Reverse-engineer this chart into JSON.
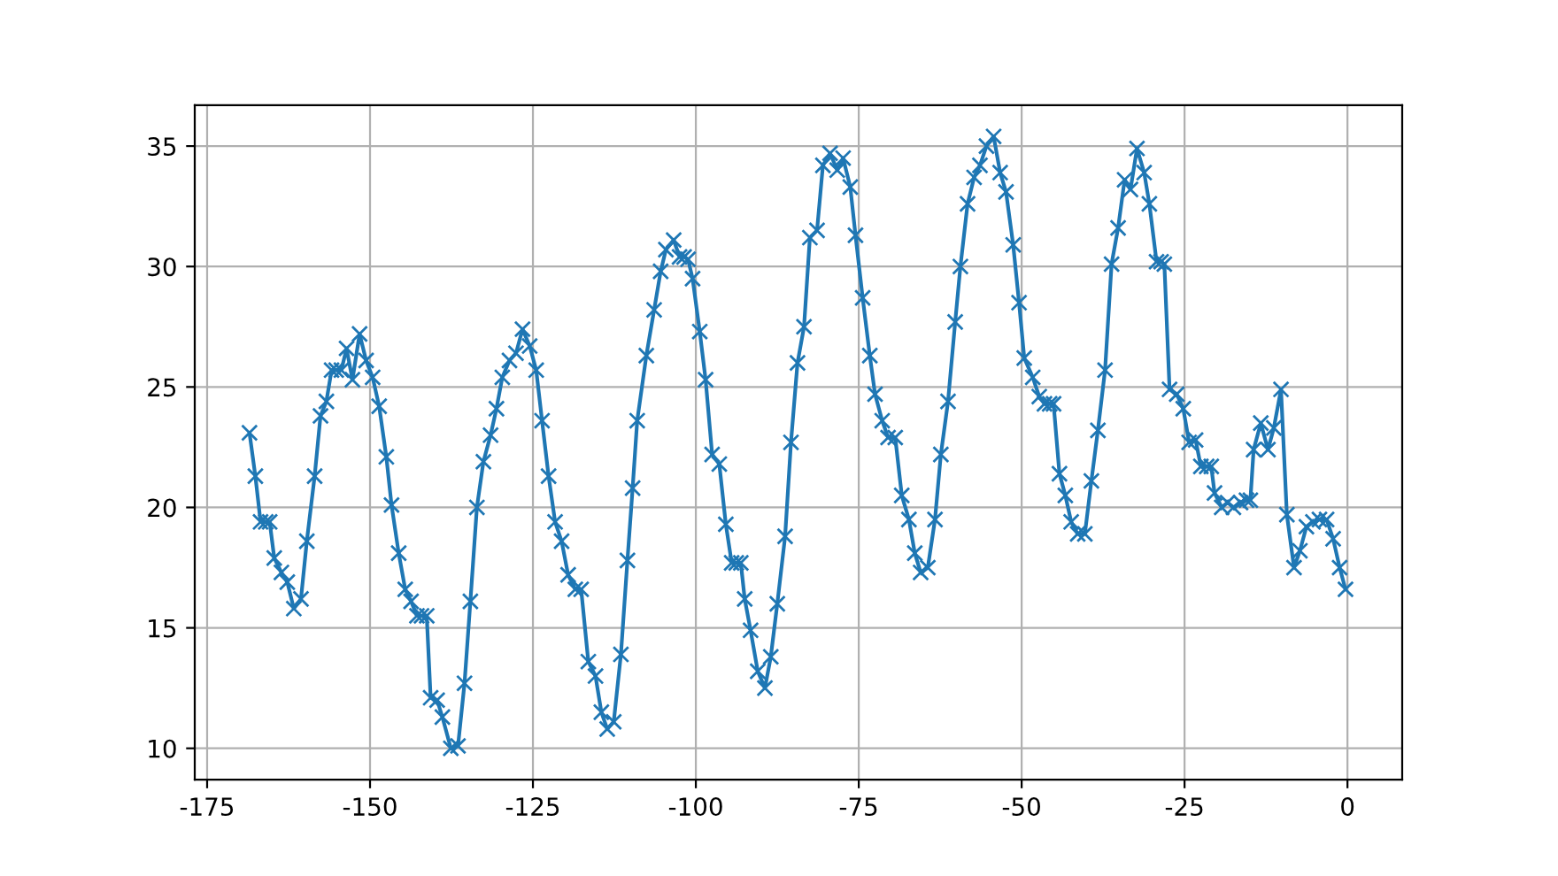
{
  "chart_data": {
    "type": "line",
    "x": [
      -168.5,
      -167.6,
      -166.8,
      -166.0,
      -165.4,
      -164.7,
      -163.6,
      -162.7,
      -161.7,
      -160.6,
      -159.7,
      -158.5,
      -157.6,
      -156.7,
      -155.9,
      -155.2,
      -154.4,
      -153.6,
      -152.7,
      -151.6,
      -150.6,
      -149.6,
      -148.6,
      -147.5,
      -146.7,
      -145.6,
      -144.6,
      -143.7,
      -142.8,
      -142.1,
      -141.3,
      -140.7,
      -139.7,
      -138.9,
      -137.6,
      -136.5,
      -135.5,
      -134.6,
      -133.6,
      -132.6,
      -131.5,
      -130.6,
      -129.7,
      -128.6,
      -127.6,
      -126.6,
      -125.5,
      -124.5,
      -123.6,
      -122.6,
      -121.6,
      -120.6,
      -119.6,
      -118.5,
      -117.6,
      -116.5,
      -115.4,
      -114.5,
      -113.6,
      -112.6,
      -111.5,
      -110.5,
      -109.7,
      -109.0,
      -107.6,
      -106.4,
      -105.4,
      -104.6,
      -103.4,
      -102.5,
      -101.8,
      -101.2,
      -100.5,
      -99.4,
      -98.5,
      -97.5,
      -96.4,
      -95.4,
      -94.5,
      -93.8,
      -93.1,
      -92.5,
      -91.6,
      -90.5,
      -89.4,
      -88.5,
      -87.5,
      -86.3,
      -85.4,
      -84.4,
      -83.4,
      -82.5,
      -81.4,
      -80.5,
      -79.4,
      -78.3,
      -77.4,
      -76.3,
      -75.5,
      -74.4,
      -73.3,
      -72.5,
      -71.4,
      -70.5,
      -69.4,
      -68.4,
      -67.3,
      -66.4,
      -65.5,
      -64.4,
      -63.3,
      -62.4,
      -61.3,
      -60.2,
      -59.4,
      -58.3,
      -57.3,
      -56.4,
      -55.4,
      -54.3,
      -53.3,
      -52.4,
      -51.3,
      -50.4,
      -49.6,
      -48.3,
      -47.3,
      -46.5,
      -45.7,
      -45.1,
      -44.2,
      -43.3,
      -42.4,
      -41.4,
      -40.3,
      -39.3,
      -38.3,
      -37.2,
      -36.2,
      -35.2,
      -34.2,
      -33.3,
      -32.3,
      -31.2,
      -30.4,
      -29.3,
      -28.6,
      -28.1,
      -27.3,
      -26.2,
      -25.2,
      -24.3,
      -23.3,
      -22.5,
      -21.6,
      -20.9,
      -20.4,
      -19.3,
      -18.4,
      -17.5,
      -16.4,
      -15.5,
      -14.9,
      -14.4,
      -13.3,
      -12.2,
      -11.3,
      -10.2,
      -9.3,
      -8.2,
      -7.3,
      -6.3,
      -5.3,
      -4.3,
      -3.2,
      -2.2,
      -1.2,
      -0.3
    ],
    "series": [
      {
        "color": "#1f77b4",
        "values": [
          23.1,
          21.3,
          19.4,
          19.4,
          19.4,
          17.9,
          17.3,
          16.9,
          15.8,
          16.2,
          18.6,
          21.3,
          23.8,
          24.4,
          25.7,
          25.7,
          25.7,
          26.6,
          25.3,
          27.2,
          26.1,
          25.4,
          24.2,
          22.1,
          20.1,
          18.1,
          16.6,
          16.1,
          15.5,
          15.5,
          15.5,
          12.1,
          12.0,
          11.3,
          10.0,
          10.1,
          12.7,
          16.1,
          20.0,
          21.9,
          23.0,
          24.1,
          25.4,
          26.1,
          26.4,
          27.4,
          26.7,
          25.7,
          23.6,
          21.3,
          19.4,
          18.6,
          17.2,
          16.6,
          16.6,
          13.6,
          13.0,
          11.5,
          10.8,
          11.1,
          13.9,
          17.8,
          20.8,
          23.6,
          26.3,
          28.2,
          29.8,
          30.7,
          31.1,
          30.4,
          30.4,
          30.3,
          29.5,
          27.3,
          25.3,
          22.2,
          21.8,
          19.3,
          17.7,
          17.7,
          17.7,
          16.2,
          14.9,
          13.2,
          12.5,
          13.8,
          16.0,
          18.8,
          22.7,
          26.0,
          27.5,
          31.2,
          31.5,
          34.2,
          34.7,
          34.0,
          34.5,
          33.3,
          31.3,
          28.7,
          26.3,
          24.7,
          23.6,
          22.9,
          22.9,
          20.5,
          19.5,
          18.1,
          17.3,
          17.5,
          19.5,
          22.2,
          24.4,
          27.7,
          30.0,
          32.6,
          33.7,
          34.2,
          35.0,
          35.4,
          33.9,
          33.1,
          30.9,
          28.5,
          26.2,
          25.4,
          24.6,
          24.3,
          24.3,
          24.3,
          21.4,
          20.5,
          19.4,
          18.9,
          18.9,
          21.1,
          23.2,
          25.7,
          30.1,
          31.6,
          33.6,
          33.2,
          34.9,
          33.9,
          32.6,
          30.2,
          30.2,
          30.1,
          24.9,
          24.7,
          24.1,
          22.7,
          22.8,
          21.7,
          21.7,
          21.7,
          20.6,
          20.0,
          20.2,
          20.0,
          20.2,
          20.3,
          20.3,
          22.4,
          23.5,
          22.4,
          23.3,
          24.9,
          19.7,
          17.5,
          18.2,
          19.2,
          19.4,
          19.5,
          19.5,
          18.7,
          17.5,
          16.6
        ]
      }
    ],
    "xlim": [
      -176.9,
      8.4
    ],
    "ylim": [
      8.7,
      36.7
    ],
    "xticks": [
      -175,
      -150,
      -125,
      -100,
      -75,
      -50,
      -25,
      0
    ],
    "yticks": [
      10,
      15,
      20,
      25,
      30,
      35
    ],
    "grid": true,
    "marker": "cross",
    "line_style": "solid"
  }
}
